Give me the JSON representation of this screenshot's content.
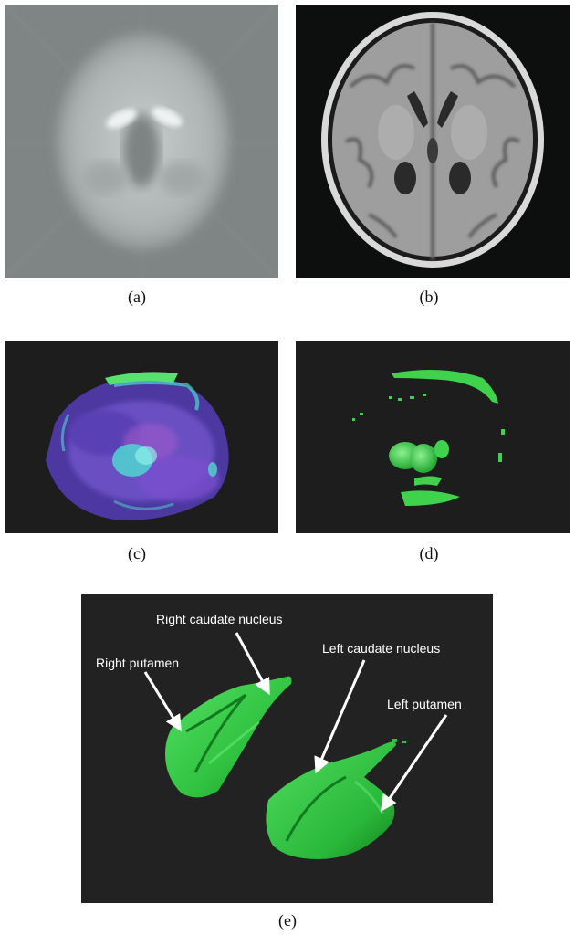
{
  "panels": {
    "a": {
      "caption": "(a)",
      "colors": {
        "background": "#7f8584",
        "brain": "#bfc4c4",
        "highlight": "#f2f4f4"
      }
    },
    "b": {
      "caption": "(b)",
      "colors": {
        "background": "#0c0f0e",
        "skull": "#d9d9d9",
        "tissue": "#a9a9a9"
      }
    },
    "c": {
      "caption": "(c)",
      "colors": {
        "background": "#1d1d1d",
        "brain": "#5b3fb0",
        "overlay": "#4fd6d0",
        "top": "#58e16f"
      }
    },
    "d": {
      "caption": "(d)",
      "colors": {
        "background": "#1d1d1d",
        "structure": "#3fd24d"
      }
    },
    "e": {
      "caption": "(e)",
      "colors": {
        "background": "#222222",
        "structure": "#2fc23f",
        "arrow": "#ffffff"
      },
      "labels": {
        "right_caudate": "Right caudate nucleus",
        "right_putamen": "Right putamen",
        "left_caudate": "Left caudate nucleus",
        "left_putamen": "Left putamen"
      }
    }
  }
}
